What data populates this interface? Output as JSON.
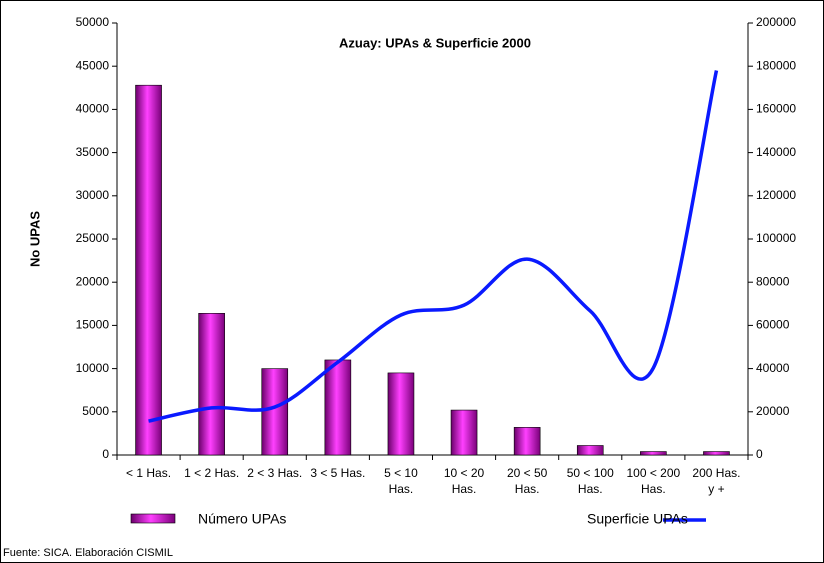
{
  "chart_data": {
    "type": "bar",
    "title": "Azuay: UPAs & Superficie 2000",
    "y_label": "No UPAS",
    "source": "Fuente: SICA. Elaboración CISMIL",
    "categories": [
      "< 1 Has.",
      "1 < 2 Has.",
      "2 < 3 Has.",
      "3 < 5 Has.",
      "5 < 10 Has.",
      "10 < 20 Has.",
      "20 < 50 Has.",
      "50 < 100 Has.",
      "100 < 200 Has.",
      "200 Has. y +"
    ],
    "series": [
      {
        "name": "Número UPAs",
        "color": "#cc00cc",
        "values": [
          42800,
          16400,
          10000,
          11000,
          9500,
          5200,
          3200,
          1100,
          400,
          400
        ]
      },
      {
        "name": "Superficie UPAs",
        "color": "#0a1aff",
        "axis": "y2",
        "values": [
          15700,
          21800,
          22200,
          43000,
          64800,
          69400,
          90700,
          66700,
          40300,
          178000
        ]
      }
    ],
    "ylim": [
      0,
      50000
    ],
    "yticks": [
      0,
      5000,
      10000,
      15000,
      20000,
      25000,
      30000,
      35000,
      40000,
      45000,
      50000
    ],
    "y2lim": [
      0,
      200000
    ],
    "y2ticks": [
      0,
      20000,
      40000,
      60000,
      80000,
      100000,
      120000,
      140000,
      160000,
      180000,
      200000
    ],
    "grid": false
  }
}
